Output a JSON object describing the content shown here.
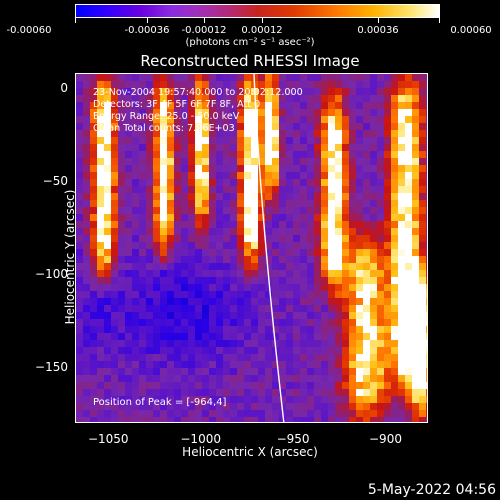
{
  "colorbar": {
    "ticks": [
      "-0.00060",
      "-0.00036",
      "-0.00012",
      "0.00012",
      "0.00036",
      "0.00060"
    ],
    "units": "(photons cm⁻² s⁻¹ asec⁻²)"
  },
  "title": "Reconstructed RHESSI Image",
  "info": {
    "time": "23-Nov-2004 19:57:40.000 to 20:02:12.000",
    "detectors": "Detectors: 3F 4F 5F 6F 7F 8F, Att 0",
    "energy": "Energy Range: 25.0 - 50.0 keV",
    "clean": "Clean    Total counts: 7.06E+03"
  },
  "peak_text": "Position of Peak = [-964,4]",
  "axes": {
    "xlabel": "Heliocentric X (arcsec)",
    "ylabel": "Heliocentric Y (arcsec)",
    "xticks": [
      "-1050",
      "-1000",
      "-950",
      "-900"
    ],
    "yticks": [
      "0",
      "-50",
      "-100",
      "-150"
    ]
  },
  "chart_data": {
    "type": "heatmap",
    "title": "Reconstructed RHESSI Image",
    "xlabel": "Heliocentric X (arcsec)",
    "ylabel": "Heliocentric Y (arcsec)",
    "xlim": [
      -1068,
      -877
    ],
    "ylim": [
      -180,
      8
    ],
    "colorbar_range": [
      -0.0006,
      0.0006
    ],
    "peak": [
      -964,
      4
    ],
    "limb_visible": true
  },
  "footer_date": "5-May-2022 04:56"
}
